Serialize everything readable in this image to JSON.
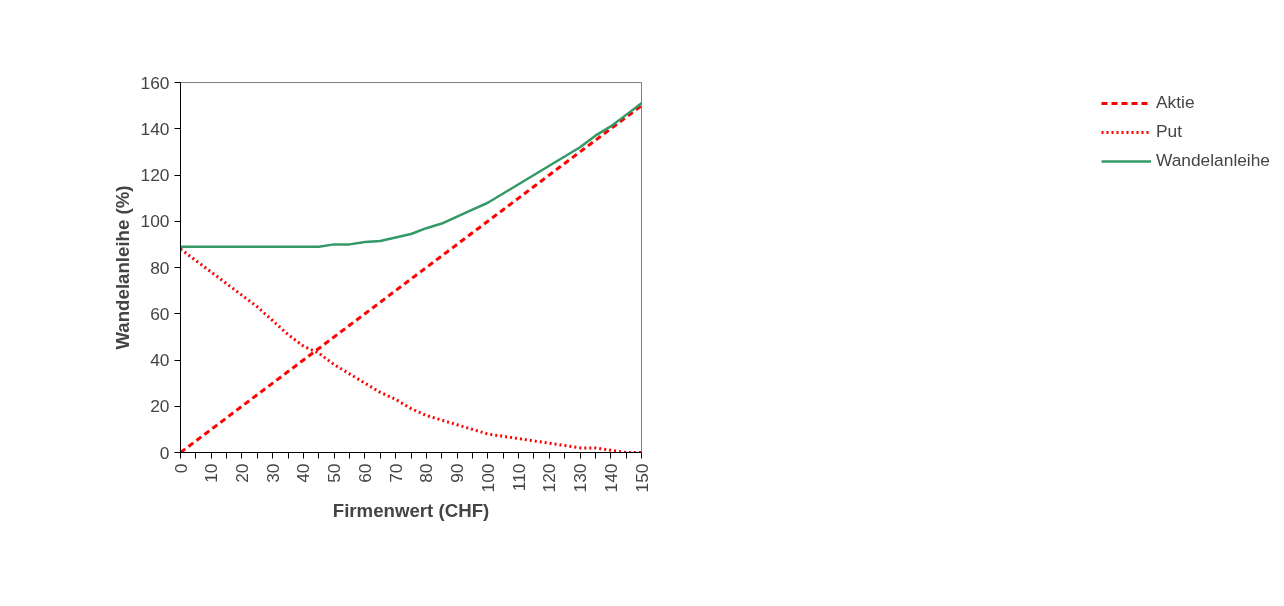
{
  "chart_data": {
    "type": "line",
    "xlabel": "Firmenwert (CHF)",
    "ylabel": "Wandelanleihe (%)",
    "x": [
      0,
      5,
      10,
      15,
      20,
      25,
      30,
      35,
      40,
      45,
      50,
      55,
      60,
      65,
      70,
      75,
      80,
      85,
      90,
      95,
      100,
      105,
      110,
      115,
      120,
      125,
      130,
      135,
      140,
      145,
      150
    ],
    "series": [
      {
        "name": "Aktie",
        "color": "#ff0000",
        "line_style": "dashed",
        "values": [
          0,
          5,
          10,
          15,
          20,
          25,
          30,
          35,
          40,
          45,
          50,
          55,
          60,
          65,
          70,
          75,
          80,
          85,
          90,
          95,
          100,
          105,
          110,
          115,
          120,
          125,
          130,
          135,
          140,
          145,
          150
        ]
      },
      {
        "name": "Put",
        "color": "#ff0000",
        "line_style": "dotted",
        "values": [
          88,
          83,
          78,
          73,
          68,
          63,
          57,
          51,
          46,
          43,
          38,
          34,
          30,
          26,
          23,
          19,
          16,
          14,
          12,
          10,
          8,
          7,
          6,
          5,
          4,
          3,
          2,
          2,
          1,
          0,
          0
        ]
      },
      {
        "name": "Wandelanleihe",
        "color": "#339966",
        "line_style": "solid",
        "values": [
          89,
          89,
          89,
          89,
          89,
          89,
          89,
          89,
          89,
          89,
          90,
          90,
          91,
          91.5,
          93,
          94.5,
          97,
          99,
          102,
          105,
          108,
          112,
          116,
          120,
          124,
          128,
          132,
          137,
          141,
          146,
          151
        ]
      }
    ],
    "xlim": [
      0,
      150
    ],
    "ylim": [
      0,
      160
    ],
    "xticks": [
      0,
      {
        "value": 5,
        "label": null
      },
      10,
      {
        "value": 15,
        "label": null
      },
      20,
      {
        "value": 25,
        "label": null
      },
      30,
      {
        "value": 35,
        "label": null
      },
      40,
      {
        "value": 45,
        "label": null
      },
      50,
      {
        "value": 55,
        "label": null
      },
      60,
      {
        "value": 65,
        "label": null
      },
      70,
      {
        "value": 75,
        "label": null
      },
      80,
      {
        "value": 85,
        "label": null
      },
      90,
      {
        "value": 95,
        "label": null
      },
      100,
      {
        "value": 105,
        "label": null
      },
      110,
      {
        "value": 115,
        "label": null
      },
      120,
      {
        "value": 125,
        "label": null
      },
      130,
      {
        "value": 135,
        "label": null
      },
      140,
      {
        "value": 145,
        "label": null
      },
      150
    ],
    "yticks": [
      0,
      20,
      40,
      60,
      80,
      100,
      120,
      140,
      160
    ],
    "grid": false,
    "legend": "right",
    "marker": "none"
  }
}
